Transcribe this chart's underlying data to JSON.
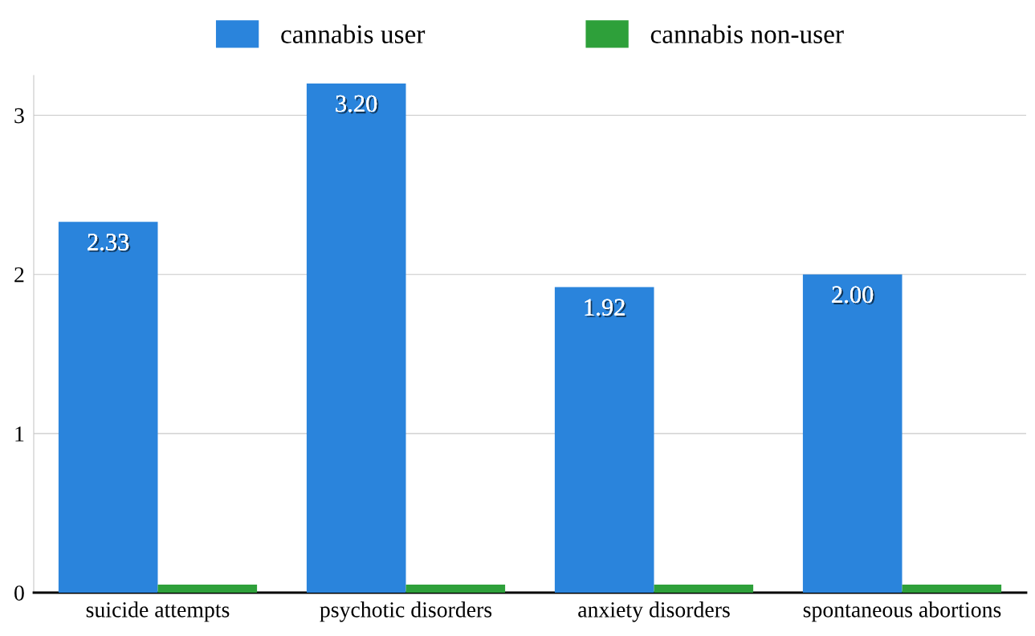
{
  "chart_data": {
    "type": "bar",
    "categories": [
      "suicide attempts",
      "psychotic disorders",
      "anxiety disorders",
      "spontaneous abortions"
    ],
    "series": [
      {
        "name": "cannabis user",
        "color": "#2a84dc",
        "values": [
          2.33,
          3.2,
          1.92,
          2.0
        ],
        "value_labels": [
          "2.33",
          "3.20",
          "1.92",
          "2.00"
        ]
      },
      {
        "name": "cannabis non-user",
        "color": "#2ea03a",
        "values": [
          0.05,
          0.05,
          0.05,
          0.05
        ]
      }
    ],
    "ylim": [
      0,
      3.25
    ],
    "yticks": [
      0,
      1,
      2,
      3
    ],
    "grid": "y",
    "legend": "top"
  }
}
